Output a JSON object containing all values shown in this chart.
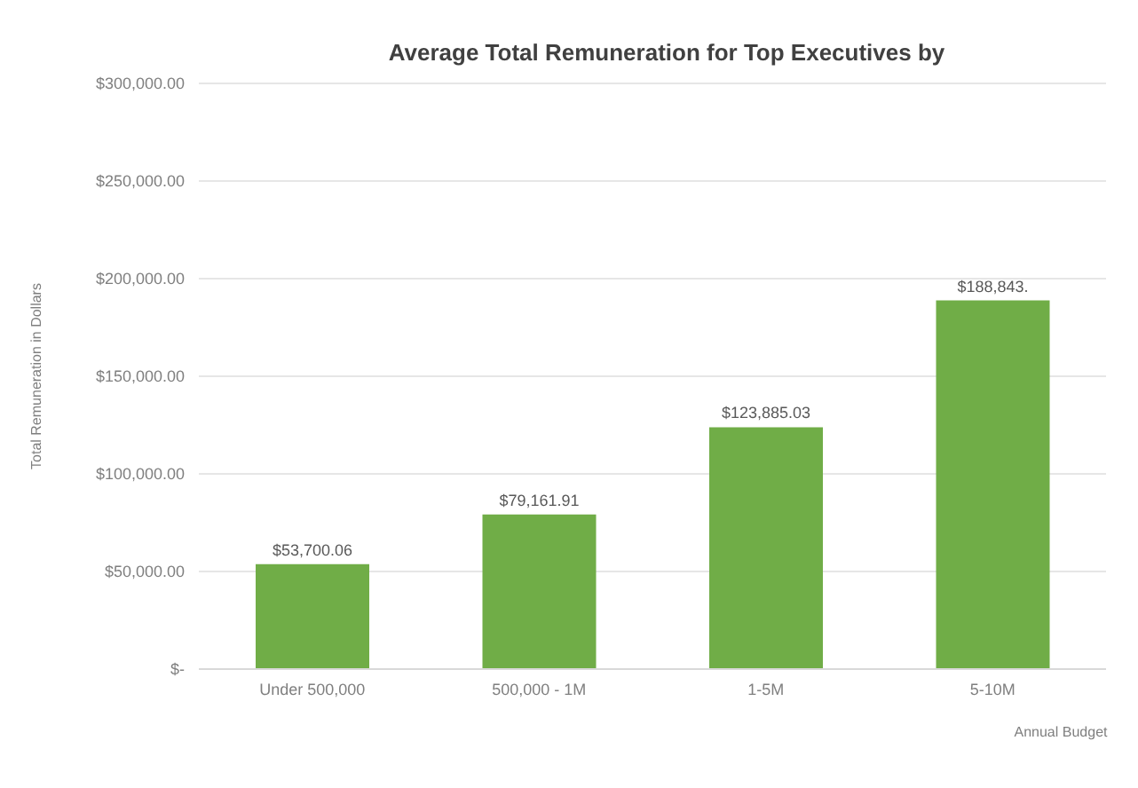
{
  "chart_data": {
    "type": "bar",
    "title": "Average Total Remuneration for Top Executives by",
    "xlabel": "Annual Budget",
    "ylabel": "Total Remuneration in Dollars",
    "categories": [
      "Under 500,000",
      "500,000 - 1M",
      "1-5M",
      "5-10M"
    ],
    "values": [
      53700.06,
      79161.91,
      123885.03,
      188843
    ],
    "value_labels": [
      "$53,700.06",
      "$79,161.91",
      "$123,885.03",
      "$188,843."
    ],
    "color": "#70ad47",
    "ylim": [
      0,
      300000
    ],
    "yticks": [
      {
        "value": 0,
        "label": "$-"
      },
      {
        "value": 50000,
        "label": "$50,000.00"
      },
      {
        "value": 100000,
        "label": "$100,000.00"
      },
      {
        "value": 150000,
        "label": "$150,000.00"
      },
      {
        "value": 200000,
        "label": "$200,000.00"
      },
      {
        "value": 250000,
        "label": "$250,000.00"
      },
      {
        "value": 300000,
        "label": "$300,000.00"
      }
    ],
    "grid": "y",
    "legend": false
  }
}
